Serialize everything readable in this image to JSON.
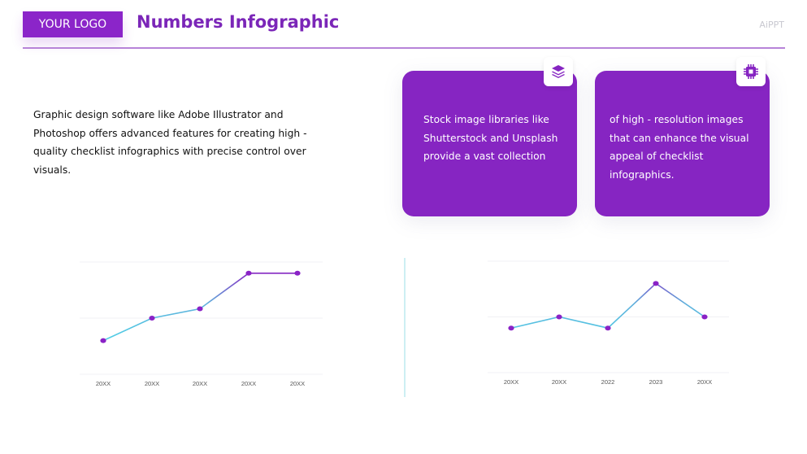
{
  "header": {
    "logo": "YOUR LOGO",
    "title": "Numbers Infographic",
    "brand": "AiPPT"
  },
  "intro": "Graphic design software like Adobe Illustrator and Photoshop offers advanced features for creating high - quality checklist infographics with precise control over visuals.",
  "cards": [
    {
      "icon": "layers-icon",
      "text": "Stock image libraries like Shutterstock and Unsplash provide a vast collection"
    },
    {
      "icon": "chip-icon",
      "text": "of high - resolution images that can enhance the visual appeal of checklist infographics."
    }
  ],
  "colors": {
    "purple": "#8625c2",
    "cyan": "#4fc8e0"
  },
  "chart_data": [
    {
      "type": "line",
      "categories": [
        "20XX",
        "20XX",
        "20XX",
        "20XX",
        "20XX"
      ],
      "values": [
        1.8,
        3,
        3.5,
        5.4,
        5.4
      ],
      "ylim": [
        0,
        6
      ],
      "grid": true,
      "title": "",
      "xlabel": "",
      "ylabel": ""
    },
    {
      "type": "line",
      "categories": [
        "20XX",
        "20XX",
        "2022",
        "2023",
        "20XX"
      ],
      "values": [
        2.4,
        3,
        2.4,
        4.8,
        3
      ],
      "ylim": [
        0,
        6
      ],
      "grid": true,
      "title": "",
      "xlabel": "",
      "ylabel": ""
    }
  ]
}
